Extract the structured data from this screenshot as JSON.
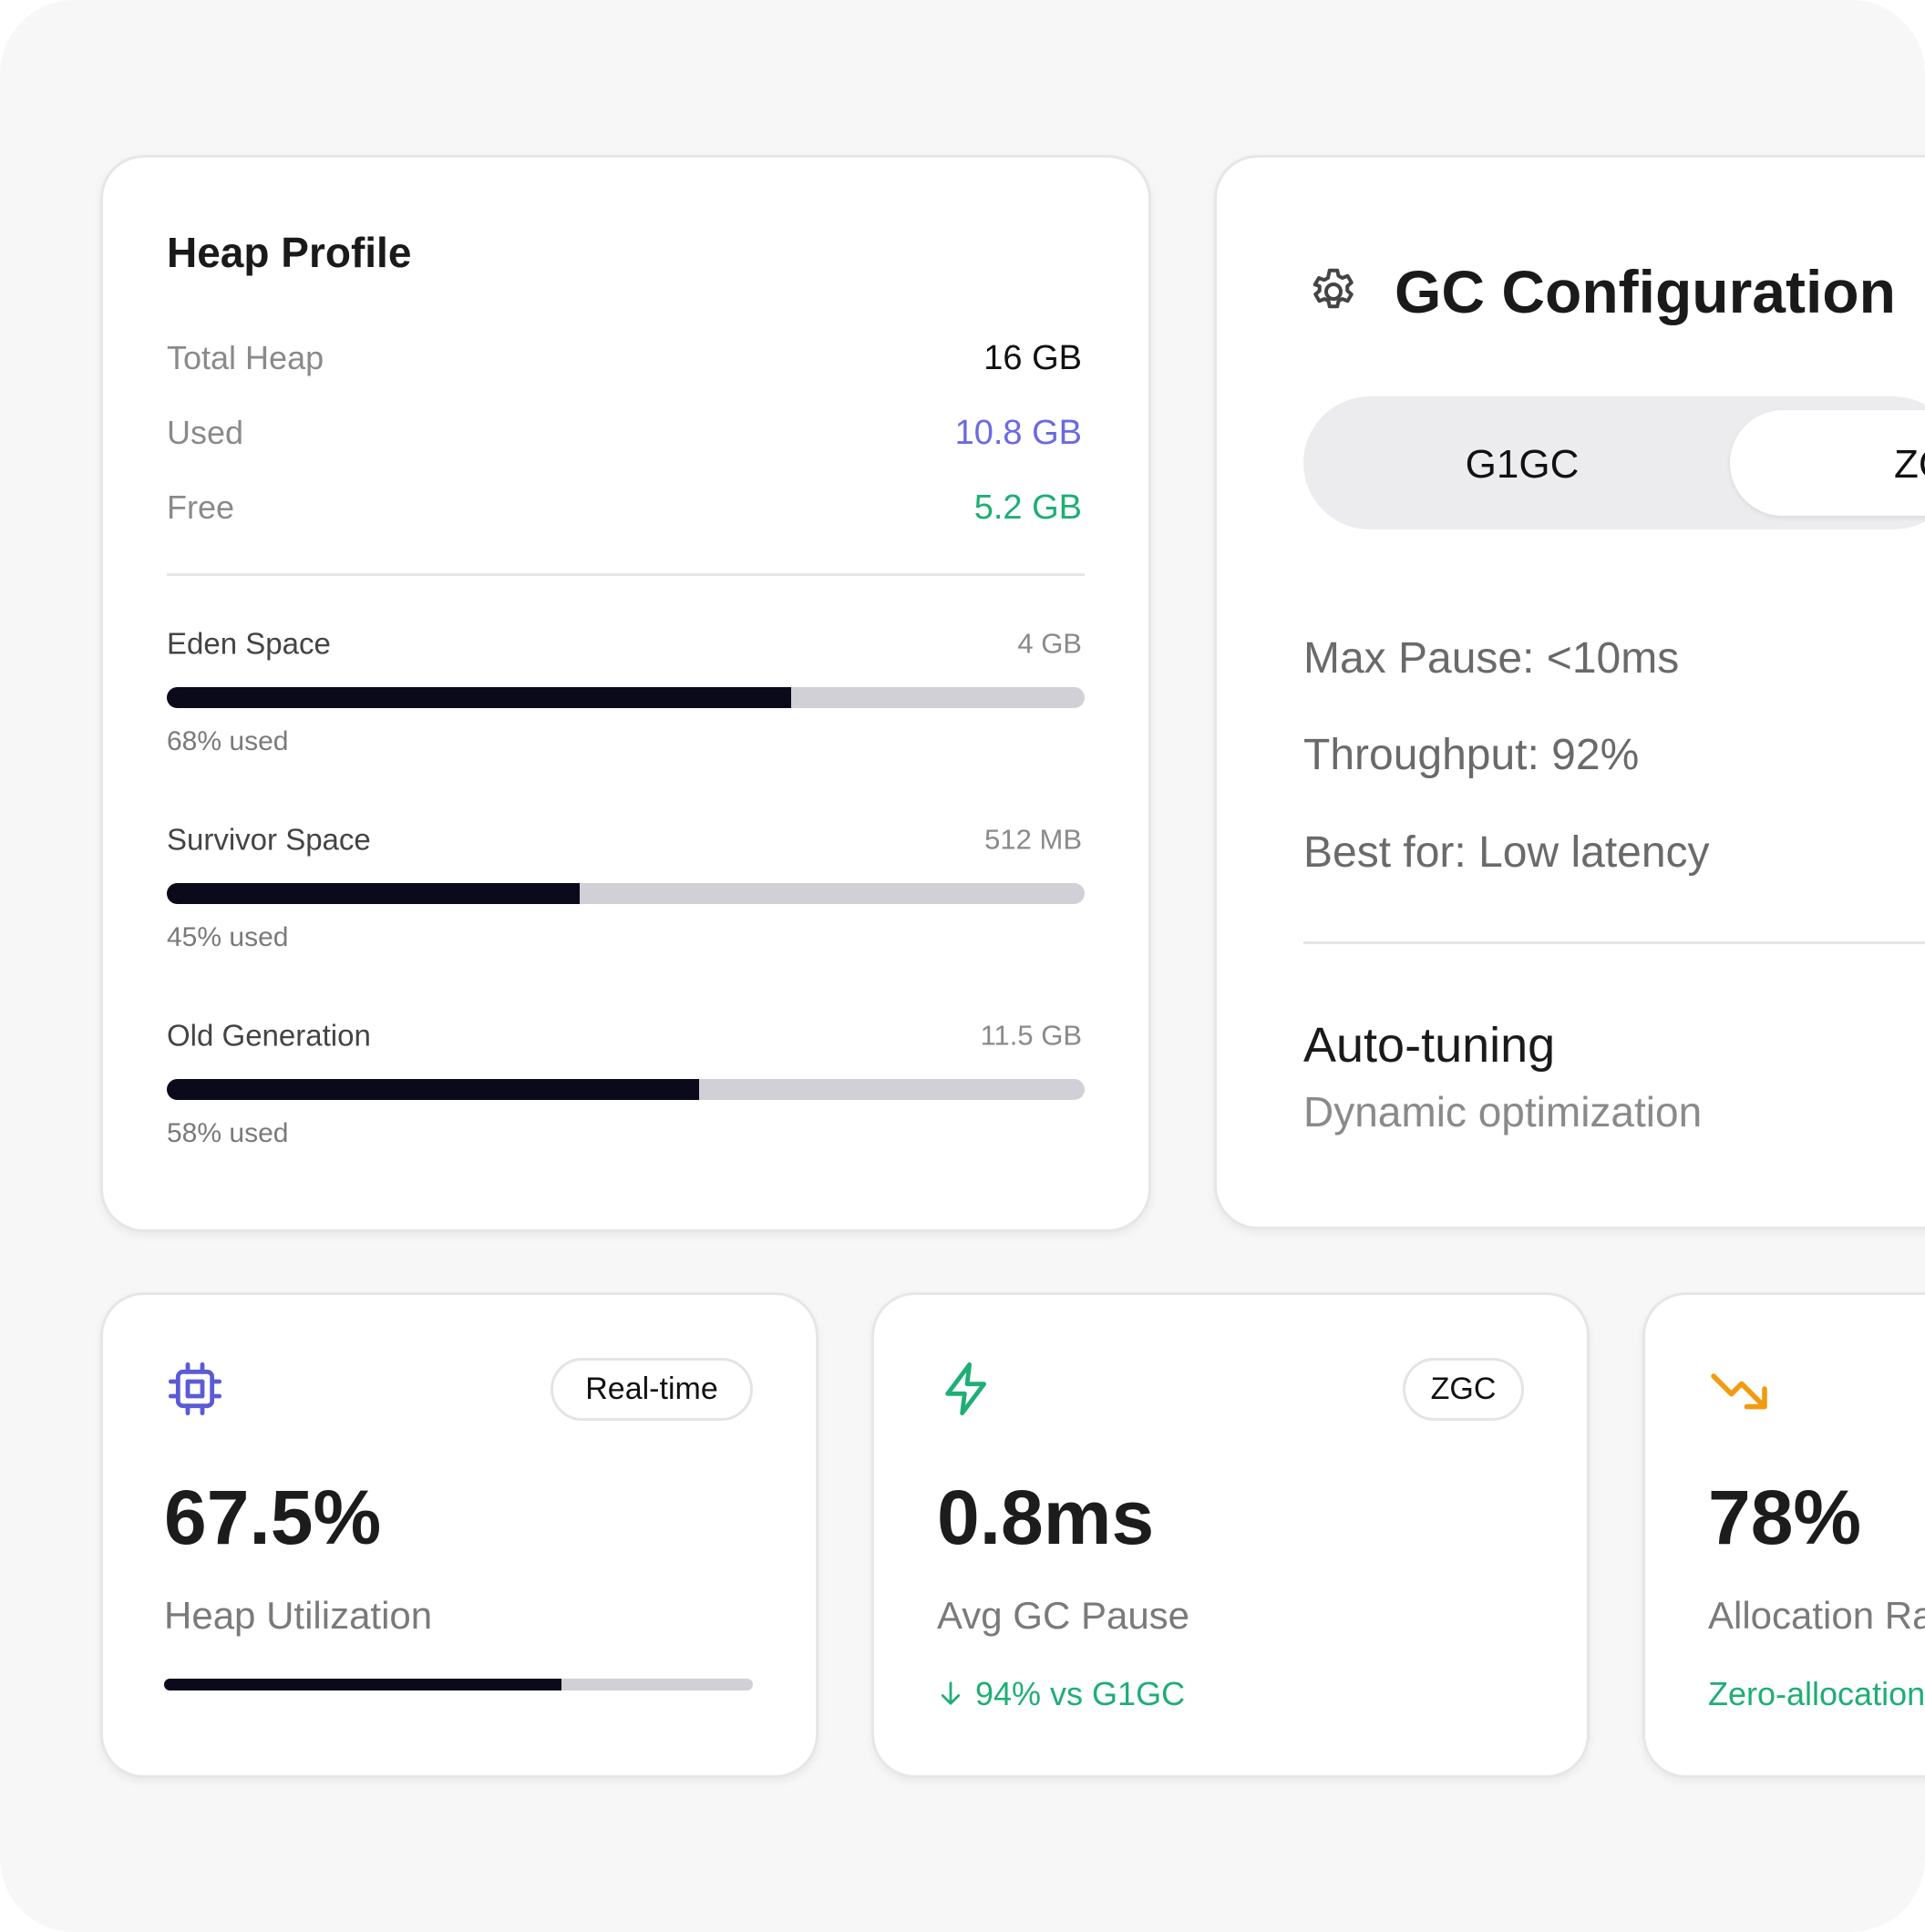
{
  "heap_profile": {
    "title": "Heap Profile",
    "summary": [
      {
        "label": "Total Heap",
        "value": "16 GB"
      },
      {
        "label": "Used",
        "value": "10.8 GB"
      },
      {
        "label": "Free",
        "value": "5.2 GB"
      }
    ],
    "segments": [
      {
        "name": "Eden Space",
        "size": "4 GB",
        "used": 68,
        "used_label": "68% used"
      },
      {
        "name": "Survivor Space",
        "size": "512 MB",
        "used": 45,
        "used_label": "45% used"
      },
      {
        "name": "Old Generation",
        "size": "11.5 GB",
        "used": 58,
        "used_label": "58% used"
      }
    ]
  },
  "gc_config": {
    "title": "GC Configuration",
    "options": [
      "G1GC",
      "ZGC"
    ],
    "details": [
      "Max Pause: <10ms",
      "Throughput: 92%",
      "Best for: Low latency"
    ],
    "feature": {
      "title": "Auto-tuning",
      "subtitle": "Dynamic optimization"
    }
  },
  "metrics": [
    {
      "badge": "Real-time",
      "value": 67.5,
      "value_label": "67.5%",
      "label": "Heap Utilization"
    },
    {
      "badge": "ZGC",
      "value_label": "0.8ms",
      "label": "Avg GC Pause",
      "note": "94% vs G1GC"
    },
    {
      "value_label": "78%",
      "label": "Allocation Rate",
      "note": "Zero-allocation"
    }
  ]
}
